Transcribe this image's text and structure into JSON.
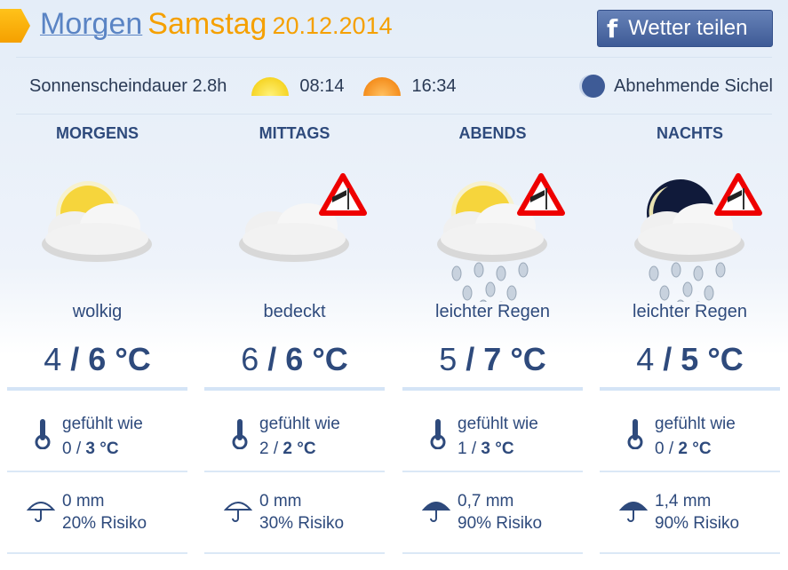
{
  "header": {
    "link": "Morgen",
    "day": "Samstag",
    "date": "20.12.2014",
    "share_button": "Wetter teilen",
    "share_icon": "facebook-icon"
  },
  "sun": {
    "duration": "Sonnenscheindauer 2.8h",
    "sunrise": "08:14",
    "sunset": "16:34",
    "moon_phase": "Abnehmende Sichel"
  },
  "colors": {
    "accent": "#f5a000",
    "text": "#2e4a7c",
    "link": "#5a84c4"
  },
  "periods": [
    {
      "name": "MORGENS",
      "icon": "sun-cloud",
      "warning": false,
      "condition": "wolkig",
      "tmin": "4",
      "tmax": "6",
      "unit": "°C",
      "feels_label": "gefühlt wie",
      "feels_min": "0",
      "feels_max": "3",
      "precip": "0 mm",
      "risk": "20% Risiko",
      "umbrella": "open-umbrella"
    },
    {
      "name": "MITTAGS",
      "icon": "cloud",
      "warning": true,
      "condition": "bedeckt",
      "tmin": "6",
      "tmax": "6",
      "unit": "°C",
      "feels_label": "gefühlt wie",
      "feels_min": "2",
      "feels_max": "2",
      "precip": "0 mm",
      "risk": "30% Risiko",
      "umbrella": "open-umbrella"
    },
    {
      "name": "ABENDS",
      "icon": "sun-cloud-rain",
      "warning": true,
      "condition": "leichter Regen",
      "tmin": "5",
      "tmax": "7",
      "unit": "°C",
      "feels_label": "gefühlt wie",
      "feels_min": "1",
      "feels_max": "3",
      "precip": "0,7 mm",
      "risk": "90% Risiko",
      "umbrella": "filled-umbrella"
    },
    {
      "name": "NACHTS",
      "icon": "moon-cloud-rain",
      "warning": true,
      "condition": "leichter Regen",
      "tmin": "4",
      "tmax": "5",
      "unit": "°C",
      "feels_label": "gefühlt wie",
      "feels_min": "0",
      "feels_max": "2",
      "precip": "1,4 mm",
      "risk": "90% Risiko",
      "umbrella": "filled-umbrella"
    }
  ]
}
